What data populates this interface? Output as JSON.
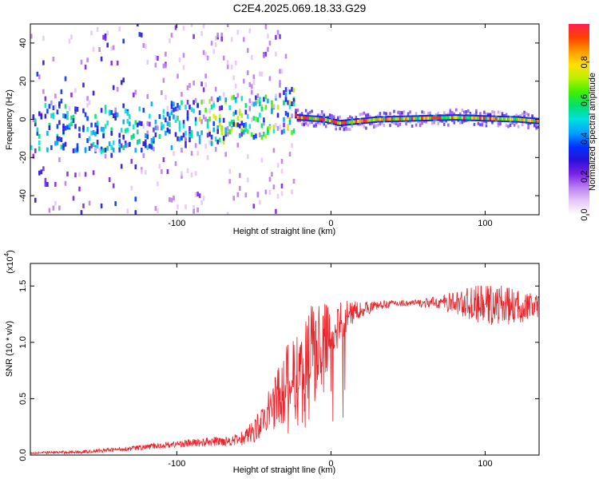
{
  "title": "C2E4.2025.069.18.33.G29",
  "chart_data": [
    {
      "type": "heatmap",
      "name": "spectrogram",
      "xlabel": "Height of straight line (km)",
      "ylabel": "Frequency (Hz)",
      "xlim": [
        -195,
        135
      ],
      "ylim": [
        -50,
        50
      ],
      "xticks": [
        -100,
        0,
        100
      ],
      "yticks": [
        -40,
        -20,
        0,
        20,
        40
      ],
      "colorbar": {
        "label": "Normalized spectral amplitude",
        "range": [
          0,
          1
        ],
        "ticks": [
          0.0,
          0.2,
          0.4,
          0.6,
          0.8
        ],
        "tick_labels": [
          "0.0",
          "0.2",
          "0.4",
          "0.6",
          "0.8"
        ],
        "colors": [
          "#ffffff",
          "#e6c8f5",
          "#b97ff0",
          "#7a22e6",
          "#2a10d8",
          "#0033ff",
          "#00a0ff",
          "#00e0e0",
          "#00e070",
          "#40f000",
          "#b8f000",
          "#ffe000",
          "#ff9a00",
          "#ff4000",
          "#ff2050"
        ]
      },
      "signal": {
        "trend": [
          [
            -180,
            -4
          ],
          [
            -150,
            -5
          ],
          [
            -120,
            -4
          ],
          [
            -90,
            -2
          ],
          [
            -60,
            0
          ],
          [
            -40,
            3
          ],
          [
            -28,
            6
          ],
          [
            -22,
            1
          ],
          [
            -5,
            0
          ],
          [
            5,
            -2
          ],
          [
            30,
            0
          ],
          [
            80,
            1
          ],
          [
            120,
            0
          ],
          [
            135,
            -1
          ]
        ],
        "note": "noisy broad distribution below about -25 km, narrow high-amplitude line near 0 Hz above"
      }
    },
    {
      "type": "line",
      "name": "snr",
      "xlabel": "Height of straight line (km)",
      "ylabel": "SNR (10 * v/v)",
      "yscale_label": "(x10",
      "yscale_exponent": "4",
      "multiplier": 10000,
      "xlim": [
        -195,
        135
      ],
      "ylim": [
        0,
        1.7
      ],
      "xticks": [
        -100,
        0,
        100
      ],
      "yticks": [
        0.0,
        0.5,
        1.0,
        1.5
      ],
      "ytick_labels": [
        "0.0",
        "0.5",
        "1.0",
        "1.5"
      ],
      "color": "#e8232a",
      "envelope": {
        "x": [
          -195,
          -160,
          -130,
          -100,
          -80,
          -60,
          -50,
          -40,
          -30,
          -20,
          -15,
          -10,
          -5,
          0,
          5,
          10,
          15,
          20,
          30,
          40,
          50,
          60,
          70,
          80,
          90,
          100,
          110,
          120,
          130,
          135
        ],
        "y": [
          0.02,
          0.03,
          0.06,
          0.1,
          0.12,
          0.14,
          0.22,
          0.4,
          0.65,
          0.75,
          0.9,
          0.95,
          1.05,
          1.1,
          1.18,
          1.25,
          1.28,
          1.3,
          1.33,
          1.35,
          1.35,
          1.35,
          1.36,
          1.36,
          1.36,
          1.35,
          1.35,
          1.33,
          1.33,
          1.32
        ],
        "amp": [
          0.01,
          0.015,
          0.02,
          0.03,
          0.04,
          0.05,
          0.1,
          0.2,
          0.35,
          0.45,
          0.5,
          0.45,
          0.35,
          0.25,
          0.2,
          0.15,
          0.1,
          0.07,
          0.04,
          0.03,
          0.03,
          0.04,
          0.06,
          0.1,
          0.15,
          0.18,
          0.18,
          0.15,
          0.12,
          0.1
        ]
      }
    }
  ]
}
